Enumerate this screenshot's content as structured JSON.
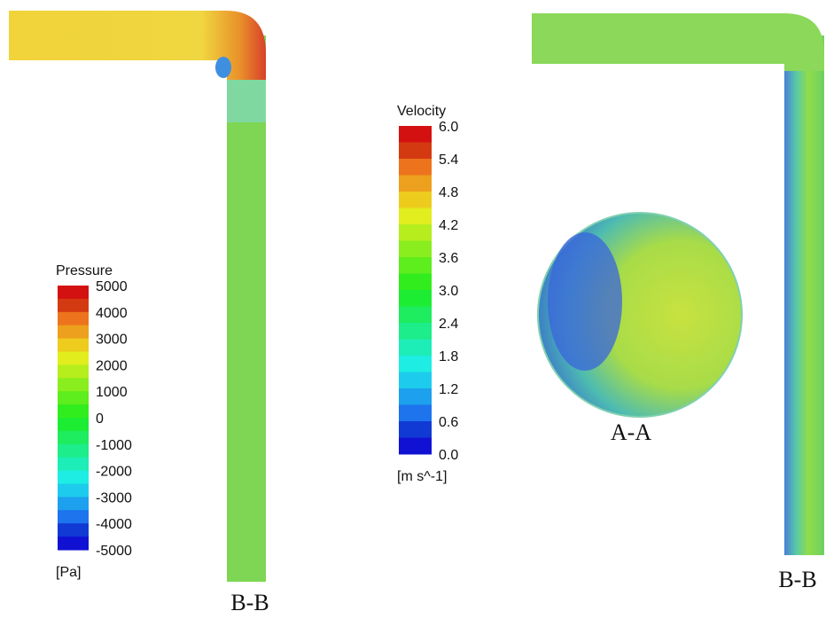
{
  "pressure_legend": {
    "title": "Pressure",
    "labels": [
      "5000",
      "4000",
      "3000",
      "2000",
      "1000",
      "0",
      "-1000",
      "-2000",
      "-3000",
      "-4000",
      "-5000"
    ],
    "unit": "[Pa]"
  },
  "velocity_legend": {
    "title": "Velocity",
    "labels": [
      "6.0",
      "5.4",
      "4.8",
      "4.2",
      "3.6",
      "3.0",
      "2.4",
      "1.8",
      "1.2",
      "0.6",
      "0.0"
    ],
    "unit": "[m s^-1]"
  },
  "section_labels": {
    "left": "B-B",
    "circle": "A-A",
    "right": "B-B"
  }
}
